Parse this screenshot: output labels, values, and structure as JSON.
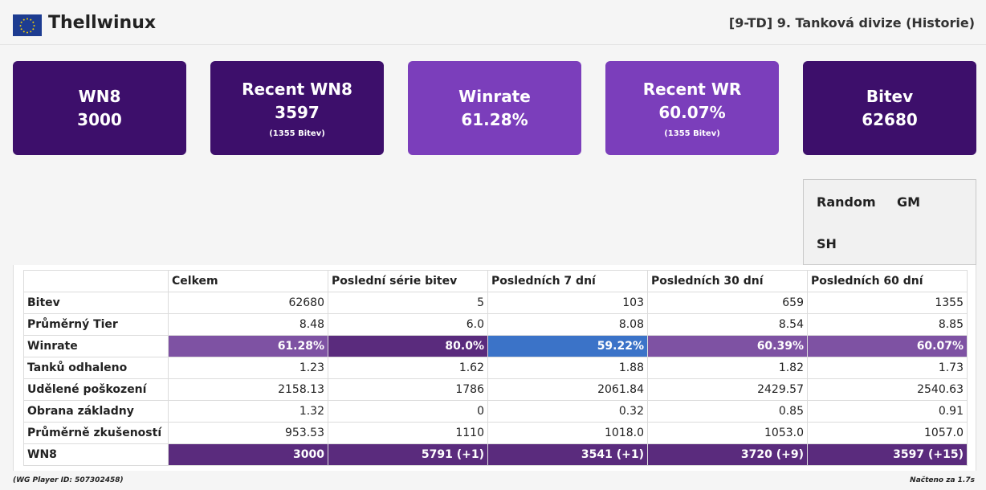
{
  "header": {
    "player_name": "Thellwinux",
    "clan": "[9-TD] 9. Tanková divize (Historie)",
    "flag_icon": "eu-flag-icon"
  },
  "cards": [
    {
      "label": "WN8",
      "value": "3000",
      "sub": "",
      "color": "#3d0f6b"
    },
    {
      "label": "Recent WN8",
      "value": "3597",
      "sub": "(1355 Bitev)",
      "color": "#3d0f6b"
    },
    {
      "label": "Winrate",
      "value": "61.28%",
      "sub": "",
      "color": "#7b3ebb"
    },
    {
      "label": "Recent WR",
      "value": "60.07%",
      "sub": "(1355 Bitev)",
      "color": "#7b3ebb"
    },
    {
      "label": "Bitev",
      "value": "62680",
      "sub": "",
      "color": "#3d0f6b"
    }
  ],
  "modes": {
    "random": "Random",
    "gm": "GM",
    "sh": "SH"
  },
  "table": {
    "headers": [
      "",
      "Celkem",
      "Poslední série bitev",
      "Posledních 7 dní",
      "Posledních 30 dní",
      "Posledních 60 dní"
    ],
    "rows": [
      {
        "label": "Bitev",
        "values": [
          "62680",
          "5",
          "103",
          "659",
          "1355"
        ]
      },
      {
        "label": "Průměrný Tier",
        "values": [
          "8.48",
          "6.0",
          "8.08",
          "8.54",
          "8.85"
        ]
      },
      {
        "label": "Winrate",
        "values": [
          "61.28%",
          "80.0%",
          "59.22%",
          "60.39%",
          "60.07%"
        ],
        "colors": [
          "#7e52a3",
          "#5a2b7d",
          "#3b73c8",
          "#7e52a3",
          "#7e52a3"
        ]
      },
      {
        "label": "Tanků odhaleno",
        "values": [
          "1.23",
          "1.62",
          "1.88",
          "1.82",
          "1.73"
        ]
      },
      {
        "label": "Udělené poškození",
        "values": [
          "2158.13",
          "1786",
          "2061.84",
          "2429.57",
          "2540.63"
        ]
      },
      {
        "label": "Obrana základny",
        "values": [
          "1.32",
          "0",
          "0.32",
          "0.85",
          "0.91"
        ]
      },
      {
        "label": "Průměrně zkušeností",
        "values": [
          "953.53",
          "1110",
          "1018.0",
          "1053.0",
          "1057.0"
        ]
      },
      {
        "label": "WN8",
        "values": [
          "3000",
          "5791 (+1)",
          "3541 (+1)",
          "3720 (+9)",
          "3597 (+15)"
        ],
        "colors": [
          "#5a2b7d",
          "#5a2b7d",
          "#5a2b7d",
          "#5a2b7d",
          "#5a2b7d"
        ]
      }
    ]
  },
  "footer": {
    "player_id": "(WG Player ID: 507302458)",
    "loaded": "Načteno za 1.7s"
  }
}
